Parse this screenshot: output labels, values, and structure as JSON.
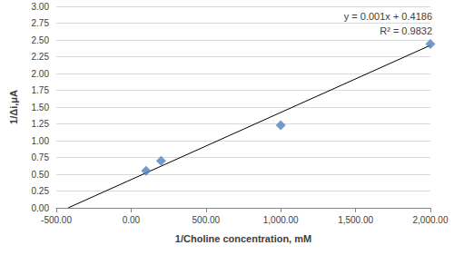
{
  "chart_data": {
    "type": "scatter",
    "x_label": "1/Choline concentration, mM",
    "y_label": "1/Δi,μA",
    "annotations": [
      "y = 0.001x + 0.4186",
      "R² = 0.9832"
    ],
    "xlim": [
      -500,
      2000
    ],
    "xticks": [
      {
        "value": -500,
        "label": "-500.00"
      },
      {
        "value": 0,
        "label": "0.00"
      },
      {
        "value": 500,
        "label": "500.00"
      },
      {
        "value": 1000,
        "label": "1,000.00"
      },
      {
        "value": 1500,
        "label": "1,500.00"
      },
      {
        "value": 2000,
        "label": "2,000.00"
      }
    ],
    "ylim": [
      0,
      3
    ],
    "yticks": [
      {
        "value": 0,
        "label": "0.00"
      },
      {
        "value": 0.25,
        "label": "0.25"
      },
      {
        "value": 0.5,
        "label": "0.50"
      },
      {
        "value": 0.75,
        "label": "0.75"
      },
      {
        "value": 1,
        "label": "1.00"
      },
      {
        "value": 1.25,
        "label": "1.25"
      },
      {
        "value": 1.5,
        "label": "1.50"
      },
      {
        "value": 1.75,
        "label": "1.75"
      },
      {
        "value": 2,
        "label": "2.00"
      },
      {
        "value": 2.25,
        "label": "2.25"
      },
      {
        "value": 2.5,
        "label": "2.50"
      },
      {
        "value": 2.75,
        "label": "2.75"
      },
      {
        "value": 3,
        "label": "3.00"
      }
    ],
    "grid": true,
    "series": [
      {
        "type": "scatter",
        "marker": "diamond",
        "color": "#4f81bd",
        "x": [
          100,
          200,
          1000,
          2000
        ],
        "values": [
          0.55,
          0.7,
          1.23,
          2.44
        ]
      },
      {
        "type": "line",
        "line_style": "solid",
        "color": "#000000",
        "x": [
          -420,
          2000
        ],
        "values": [
          0,
          2.42
        ]
      }
    ]
  }
}
